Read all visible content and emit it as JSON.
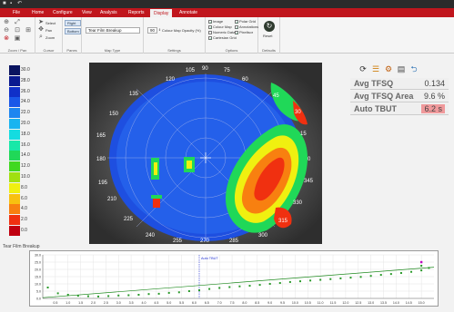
{
  "app": {
    "title_icons": [
      "app-icon",
      "save-icon",
      "undo-icon"
    ],
    "tabs": [
      {
        "label": "File",
        "active": false
      },
      {
        "label": "Home",
        "active": false
      },
      {
        "label": "Configure",
        "active": false
      },
      {
        "label": "View",
        "active": false
      },
      {
        "label": "Analysis",
        "active": false
      },
      {
        "label": "Reports",
        "active": false
      },
      {
        "label": "Display",
        "active": true
      },
      {
        "label": "Annotate",
        "active": false
      }
    ],
    "accent": "#c0161d"
  },
  "ribbon": {
    "zoom_group": {
      "label": "Zoom / Pan"
    },
    "cursor_group": {
      "label": "Cursor",
      "select": "Select",
      "pan": "Pan",
      "zoom": "Zoom"
    },
    "panes_group": {
      "label": "Panes",
      "right": "Right",
      "bottom": "Bottom"
    },
    "maptype_group": {
      "label": "Map Type",
      "value": "Tear Film Breakup"
    },
    "settings_group": {
      "label": "Settings",
      "opacity_value": "90",
      "opacity_label": "Colour Map Opacity (%)"
    },
    "options_group": {
      "label": "Options",
      "col1": [
        {
          "label": "Image",
          "checked": true
        },
        {
          "label": "Colour Map",
          "checked": true
        },
        {
          "label": "Numeric Data",
          "checked": false
        },
        {
          "label": "Cartesian Grid",
          "checked": true
        }
      ],
      "col2": [
        {
          "label": "Polar Grid",
          "checked": true
        },
        {
          "label": "Annotations",
          "checked": true
        },
        {
          "label": "Pixelisor",
          "checked": true
        }
      ]
    },
    "defaults_group": {
      "label": "Defaults",
      "reset": "Reset"
    }
  },
  "legend": {
    "entries": [
      {
        "value": "30.0",
        "color": "#0a1460"
      },
      {
        "value": "28.0",
        "color": "#0a1a90"
      },
      {
        "value": "26.0",
        "color": "#1030c8"
      },
      {
        "value": "24.0",
        "color": "#1a58e8"
      },
      {
        "value": "22.0",
        "color": "#1e86f0"
      },
      {
        "value": "20.0",
        "color": "#18b4f0"
      },
      {
        "value": "18.0",
        "color": "#14dce0"
      },
      {
        "value": "16.0",
        "color": "#18e8a8"
      },
      {
        "value": "14.0",
        "color": "#20d858"
      },
      {
        "value": "12.0",
        "color": "#40d820"
      },
      {
        "value": "10.0",
        "color": "#a0e010"
      },
      {
        "value": "8.0",
        "color": "#f0f010"
      },
      {
        "value": "6.0",
        "color": "#f8c010"
      },
      {
        "value": "4.0",
        "color": "#f88010"
      },
      {
        "value": "2.0",
        "color": "#f03010"
      },
      {
        "value": "0.0",
        "color": "#c00010"
      }
    ]
  },
  "map": {
    "angle_labels": [
      "105",
      "90",
      "75",
      "120",
      "60",
      "135",
      "45",
      "150",
      "30",
      "165",
      "15",
      "180",
      "0",
      "195",
      "345",
      "210",
      "330",
      "225",
      "315",
      "240",
      "300",
      "255",
      "270",
      "285"
    ]
  },
  "metrics": {
    "tool_icons": [
      "refresh-icon",
      "list-icon",
      "settings-icon",
      "save-icon",
      "back-icon"
    ],
    "avg_tfsq_label": "Avg TFSQ",
    "avg_tfsq_value": "0.134",
    "avg_tfsq_area_label": "Avg TFSQ Area",
    "avg_tfsq_area_value": "9.6  %",
    "auto_tbut_label": "Auto TBUT",
    "auto_tbut_value": "6.2  s"
  },
  "graph": {
    "title": "Tear Film Breakup",
    "marker_label": "Auto TBUT"
  },
  "chart_data": {
    "type": "scatter",
    "title": "Tear Film Breakup",
    "y_ticks": [
      "30.0",
      "25.0",
      "20.0",
      "15.0",
      "10.0",
      "5.0",
      "0.0"
    ],
    "x_ticks": [
      "0.5",
      "1.0",
      "1.5",
      "2.0",
      "2.5",
      "3.0",
      "3.5",
      "4.0",
      "4.5",
      "5.0",
      "5.5",
      "6.0",
      "6.5",
      "7.0",
      "7.5",
      "8.0",
      "8.5",
      "9.0",
      "9.5",
      "10.0",
      "10.5",
      "11.0",
      "11.5",
      "12.0",
      "12.5",
      "13.0",
      "13.5",
      "14.0",
      "14.5",
      "15.0"
    ],
    "ylim": [
      0,
      30
    ],
    "xlim": [
      0,
      15.5
    ],
    "marker_x": 6.2,
    "points": [
      [
        0.2,
        7.5
      ],
      [
        0.6,
        3.5
      ],
      [
        1.0,
        2.5
      ],
      [
        1.4,
        1.8
      ],
      [
        1.8,
        1.5
      ],
      [
        2.2,
        1.3
      ],
      [
        2.6,
        1.6
      ],
      [
        3.0,
        2.0
      ],
      [
        3.4,
        2.2
      ],
      [
        3.8,
        2.5
      ],
      [
        4.2,
        3.0
      ],
      [
        4.6,
        3.2
      ],
      [
        5.0,
        3.8
      ],
      [
        5.4,
        4.2
      ],
      [
        5.8,
        5.0
      ],
      [
        6.2,
        5.6
      ],
      [
        6.6,
        6.5
      ],
      [
        7.0,
        7.2
      ],
      [
        7.4,
        7.8
      ],
      [
        7.8,
        8.3
      ],
      [
        8.2,
        8.7
      ],
      [
        8.6,
        9.3
      ],
      [
        9.0,
        10.0
      ],
      [
        9.4,
        10.6
      ],
      [
        9.8,
        11.3
      ],
      [
        10.2,
        11.8
      ],
      [
        10.6,
        12.3
      ],
      [
        11.0,
        12.8
      ],
      [
        11.4,
        13.3
      ],
      [
        11.8,
        13.8
      ],
      [
        12.2,
        14.3
      ],
      [
        12.6,
        14.8
      ],
      [
        13.0,
        15.5
      ],
      [
        13.4,
        16.2
      ],
      [
        13.8,
        16.8
      ],
      [
        14.2,
        17.5
      ],
      [
        14.6,
        18.3
      ],
      [
        15.0,
        19.3
      ],
      [
        15.3,
        21.0
      ],
      [
        15.0,
        22.5
      ]
    ],
    "fit_line": [
      [
        0.0,
        0.5
      ],
      [
        15.5,
        21.5
      ]
    ],
    "point_color": "#2a9a2a",
    "line_color": "#1e8a1e",
    "highlight_point": [
      15.0,
      25.0
    ],
    "highlight_color": "#c000c0"
  }
}
